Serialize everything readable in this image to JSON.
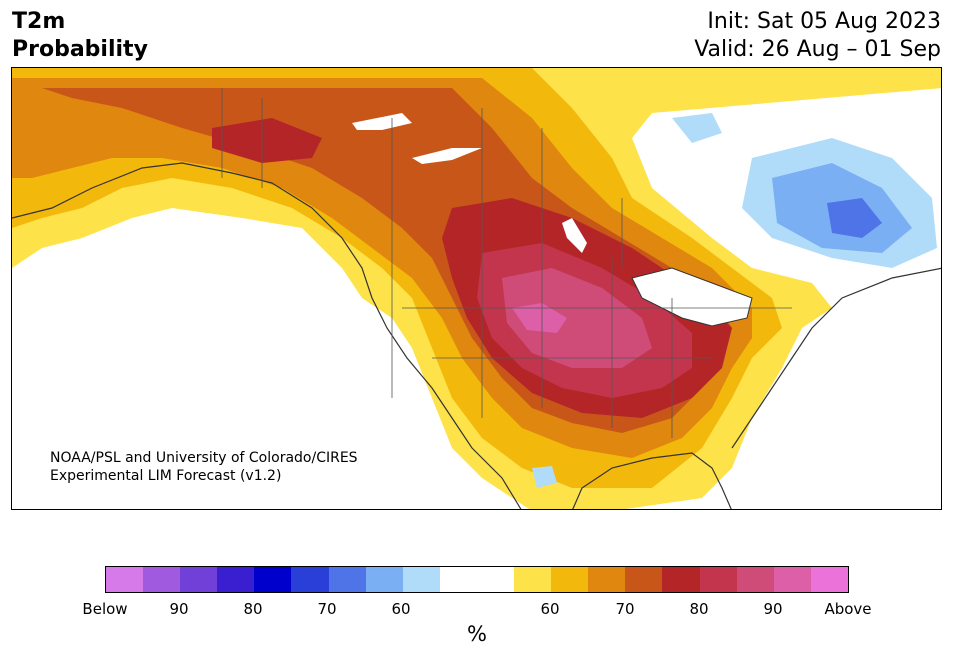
{
  "header": {
    "title_line1": "T2m",
    "title_line2": "Probability",
    "init": "Init: Sat 05 Aug 2023",
    "valid": "Valid: 26 Aug – 01 Sep"
  },
  "map": {
    "credit_line1": "NOAA/PSL and University of Colorado/CIRES",
    "credit_line2": "Experimental LIM Forecast (v1.2)",
    "region": "North America"
  },
  "colorbar": {
    "unit": "%",
    "colors": [
      "#d57ae8",
      "#a05ae0",
      "#7040d8",
      "#3a1fd0",
      "#0000cc",
      "#2a3fd8",
      "#4f74e8",
      "#7ab0f3",
      "#b0dcfa",
      "#ffffff",
      "#ffffff",
      "#fde24a",
      "#f3b80c",
      "#df870f",
      "#c85618",
      "#b42528",
      "#c2354d",
      "#cf4c78",
      "#dd5fa8",
      "#ea72d8"
    ],
    "tick_labels": [
      "Below",
      "90",
      "80",
      "70",
      "60",
      "60",
      "70",
      "80",
      "90",
      "Above"
    ]
  }
}
